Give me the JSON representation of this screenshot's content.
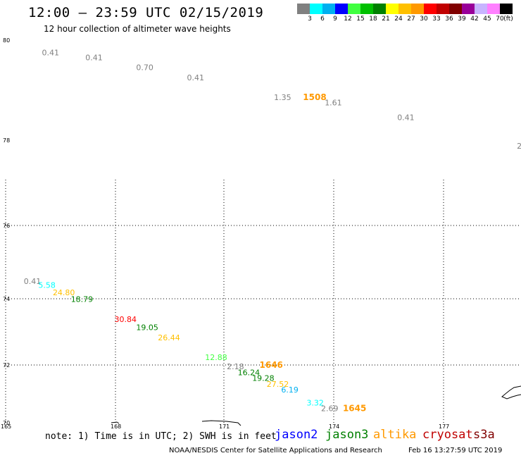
{
  "title": "12:00 – 23:59 UTC 02/15/2019",
  "subtitle": "12 hour collection of altimeter wave heights",
  "colorbar": {
    "colors": [
      "#808080",
      "#00ffff",
      "#00b0f0",
      "#0000ff",
      "#40ff40",
      "#00c000",
      "#008000",
      "#ffff00",
      "#ffc000",
      "#ff9900",
      "#ff0000",
      "#c00000",
      "#800000",
      "#990099",
      "#c8b4ff",
      "#ff80ff",
      "#000000"
    ],
    "labels": [
      "3",
      "6",
      "9",
      "12",
      "15",
      "18",
      "21",
      "24",
      "27",
      "30",
      "33",
      "36",
      "39",
      "42",
      "45",
      "70",
      "(ft)"
    ]
  },
  "map": {
    "lat_labels": [
      {
        "text": "80",
        "lat": 80
      },
      {
        "text": "78",
        "lat": 78
      },
      {
        "text": "76",
        "lat": 76
      },
      {
        "text": "74",
        "lat": 74
      },
      {
        "text": "72",
        "lat": 72
      },
      {
        "text": "70",
        "lat": 70
      }
    ],
    "lon_labels": [
      {
        "text": "165",
        "lon": 165
      },
      {
        "text": "168",
        "lon": 168
      },
      {
        "text": "171",
        "lon": 171
      },
      {
        "text": "174",
        "lon": 174
      },
      {
        "text": "177",
        "lon": 177
      }
    ],
    "observations": [
      {
        "text": "0.41",
        "lon": 166.0,
        "lat": 79.7,
        "color": "#808080"
      },
      {
        "text": "0.41",
        "lon": 167.2,
        "lat": 79.6,
        "color": "#808080"
      },
      {
        "text": "0.70",
        "lon": 168.6,
        "lat": 79.4,
        "color": "#808080"
      },
      {
        "text": "0.41",
        "lon": 170.0,
        "lat": 79.2,
        "color": "#808080"
      },
      {
        "text": "1.35",
        "lon": 172.4,
        "lat": 78.8,
        "color": "#808080"
      },
      {
        "text": "1.61",
        "lon": 173.8,
        "lat": 78.7,
        "color": "#808080"
      },
      {
        "text": "0.41",
        "lon": 175.8,
        "lat": 78.4,
        "color": "#808080"
      },
      {
        "text": "2",
        "lon": 179.1,
        "lat": 77.8,
        "color": "#808080"
      },
      {
        "text": "0.41",
        "lon": 165.5,
        "lat": 74.4,
        "color": "#808080"
      },
      {
        "text": "5.58",
        "lon": 165.9,
        "lat": 74.3,
        "color": "#00ffff"
      },
      {
        "text": "24.80",
        "lon": 166.3,
        "lat": 74.1,
        "color": "#ffc000"
      },
      {
        "text": "18.79",
        "lon": 166.8,
        "lat": 73.9,
        "color": "#008000"
      },
      {
        "text": "30.84",
        "lon": 168.0,
        "lat": 73.3,
        "color": "#ff0000"
      },
      {
        "text": "19.05",
        "lon": 168.6,
        "lat": 73.05,
        "color": "#008000"
      },
      {
        "text": "26.44",
        "lon": 169.2,
        "lat": 72.75,
        "color": "#ffc000"
      },
      {
        "text": "12.88",
        "lon": 170.5,
        "lat": 72.15,
        "color": "#40ff40"
      },
      {
        "text": "2.18",
        "lon": 171.1,
        "lat": 71.85,
        "color": "#808080"
      },
      {
        "text": "16.24",
        "lon": 171.4,
        "lat": 71.65,
        "color": "#008000"
      },
      {
        "text": "19.28",
        "lon": 171.8,
        "lat": 71.45,
        "color": "#008000"
      },
      {
        "text": "27.52",
        "lon": 172.2,
        "lat": 71.25,
        "color": "#ffc000"
      },
      {
        "text": "6.19",
        "lon": 172.6,
        "lat": 71.05,
        "color": "#00b0f0"
      },
      {
        "text": "3.32",
        "lon": 173.3,
        "lat": 70.6,
        "color": "#00ffff"
      },
      {
        "text": "2.69",
        "lon": 173.7,
        "lat": 70.4,
        "color": "#808080"
      }
    ],
    "times": [
      {
        "text": "1508",
        "lon": 173.2,
        "lat": 78.8,
        "color": "#ff9900"
      },
      {
        "text": "1646",
        "lon": 172.0,
        "lat": 71.9,
        "color": "#ff9900"
      },
      {
        "text": "1645",
        "lon": 174.3,
        "lat": 70.4,
        "color": "#ff9900"
      }
    ]
  },
  "note": "note: 1) Time is in UTC; 2) SWH is in feet",
  "satellites": [
    {
      "name": "jason2",
      "color": "#0000ff"
    },
    {
      "name": "jason3",
      "color": "#008000"
    },
    {
      "name": "altika",
      "color": "#ff9900"
    },
    {
      "name": "cryosat",
      "color": "#c00000"
    },
    {
      "name": "s3a",
      "color": "#800000"
    }
  ],
  "credit": "NOAA/NESDIS Center for Satellite Applications and Research",
  "timestamp": "Feb 16 13:27:59 UTC 2019"
}
